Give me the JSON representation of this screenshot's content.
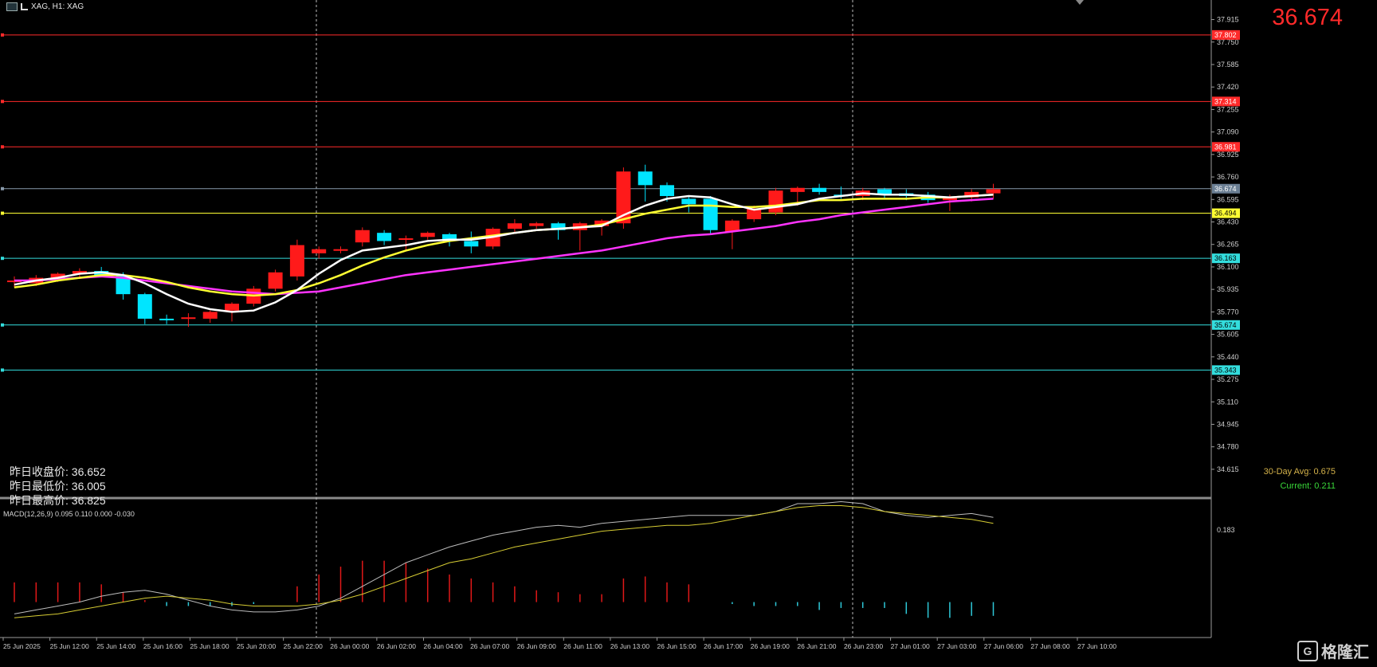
{
  "window": {
    "title": "XAG, H1: XAG"
  },
  "current_price": "36.674",
  "yesterday": {
    "close_label": "昨日收盘价",
    "close": "36.652",
    "low_label": "昨日最低价",
    "low": "36.005",
    "high_label": "昨日最高价",
    "high": "36.825"
  },
  "stats": {
    "avg_label": "30-Day Avg",
    "avg_value": "0.675",
    "current_label": "Current",
    "current_value": "0.211"
  },
  "macd_label": "MACD(12,26,9) 0.095 0.110 0.000 -0.030",
  "watermark": "格隆汇",
  "colors": {
    "bull": "#ff1a1a",
    "bear": "#00e5ff",
    "ma_fast": "#ffffff",
    "ma_mid": "#ffff33",
    "ma_slow": "#ff33ff",
    "resistance": "#ff2a2a",
    "support": "#33dddd",
    "pivot": "#ffff33"
  },
  "chart_data": {
    "type": "candlestick",
    "symbol": "XAG",
    "timeframe": "H1",
    "ylim": [
      34.48,
      38.0
    ],
    "y_ticks": [
      "37.915",
      "37.750",
      "37.585",
      "37.420",
      "37.255",
      "37.090",
      "36.925",
      "36.760",
      "36.595",
      "36.430",
      "36.265",
      "36.100",
      "35.935",
      "35.770",
      "35.605",
      "35.440",
      "35.275",
      "35.110",
      "34.945",
      "34.780",
      "34.615"
    ],
    "x_tick_labels": [
      "25 Jun 2025",
      "25 Jun 12:00",
      "25 Jun 14:00",
      "25 Jun 16:00",
      "25 Jun 18:00",
      "25 Jun 20:00",
      "25 Jun 22:00",
      "26 Jun 00:00",
      "26 Jun 02:00",
      "26 Jun 04:00",
      "26 Jun 07:00",
      "26 Jun 09:00",
      "26 Jun 11:00",
      "26 Jun 13:00",
      "26 Jun 15:00",
      "26 Jun 17:00",
      "26 Jun 19:00",
      "26 Jun 21:00",
      "26 Jun 23:00",
      "27 Jun 01:00",
      "27 Jun 03:00",
      "27 Jun 06:00",
      "27 Jun 08:00",
      "27 Jun 10:00"
    ],
    "candles": [
      {
        "o": 35.99,
        "h": 36.03,
        "l": 35.95,
        "c": 36.0
      },
      {
        "o": 35.98,
        "h": 36.04,
        "l": 35.96,
        "c": 36.02
      },
      {
        "o": 36.02,
        "h": 36.06,
        "l": 35.99,
        "c": 36.05
      },
      {
        "o": 36.05,
        "h": 36.09,
        "l": 36.02,
        "c": 36.07
      },
      {
        "o": 36.07,
        "h": 36.1,
        "l": 36.03,
        "c": 36.04
      },
      {
        "o": 36.04,
        "h": 36.06,
        "l": 35.86,
        "c": 35.9
      },
      {
        "o": 35.9,
        "h": 35.91,
        "l": 35.68,
        "c": 35.72
      },
      {
        "o": 35.72,
        "h": 35.75,
        "l": 35.68,
        "c": 35.71
      },
      {
        "o": 35.72,
        "h": 35.76,
        "l": 35.66,
        "c": 35.73
      },
      {
        "o": 35.72,
        "h": 35.78,
        "l": 35.69,
        "c": 35.77
      },
      {
        "o": 35.78,
        "h": 35.84,
        "l": 35.7,
        "c": 35.83
      },
      {
        "o": 35.83,
        "h": 35.96,
        "l": 35.81,
        "c": 35.94
      },
      {
        "o": 35.94,
        "h": 36.08,
        "l": 35.92,
        "c": 36.06
      },
      {
        "o": 36.03,
        "h": 36.3,
        "l": 36.0,
        "c": 36.26
      },
      {
        "o": 36.2,
        "h": 36.25,
        "l": 36.16,
        "c": 36.23
      },
      {
        "o": 36.22,
        "h": 36.25,
        "l": 36.2,
        "c": 36.23
      },
      {
        "o": 36.28,
        "h": 36.39,
        "l": 36.25,
        "c": 36.37
      },
      {
        "o": 36.35,
        "h": 36.37,
        "l": 36.26,
        "c": 36.29
      },
      {
        "o": 36.3,
        "h": 36.33,
        "l": 36.22,
        "c": 36.31
      },
      {
        "o": 36.32,
        "h": 36.36,
        "l": 36.3,
        "c": 36.35
      },
      {
        "o": 36.34,
        "h": 36.35,
        "l": 36.25,
        "c": 36.3
      },
      {
        "o": 36.29,
        "h": 36.36,
        "l": 36.2,
        "c": 36.25
      },
      {
        "o": 36.25,
        "h": 36.39,
        "l": 36.23,
        "c": 36.38
      },
      {
        "o": 36.38,
        "h": 36.45,
        "l": 36.35,
        "c": 36.42
      },
      {
        "o": 36.4,
        "h": 36.43,
        "l": 36.38,
        "c": 36.42
      },
      {
        "o": 36.42,
        "h": 36.43,
        "l": 36.3,
        "c": 36.37
      },
      {
        "o": 36.37,
        "h": 36.43,
        "l": 36.22,
        "c": 36.42
      },
      {
        "o": 36.4,
        "h": 36.45,
        "l": 36.33,
        "c": 36.44
      },
      {
        "o": 36.42,
        "h": 36.83,
        "l": 36.38,
        "c": 36.8
      },
      {
        "o": 36.8,
        "h": 36.85,
        "l": 36.58,
        "c": 36.7
      },
      {
        "o": 36.7,
        "h": 36.72,
        "l": 36.58,
        "c": 36.62
      },
      {
        "o": 36.6,
        "h": 36.62,
        "l": 36.5,
        "c": 36.56
      },
      {
        "o": 36.6,
        "h": 36.62,
        "l": 36.34,
        "c": 36.37
      },
      {
        "o": 36.36,
        "h": 36.45,
        "l": 36.23,
        "c": 36.44
      },
      {
        "o": 36.45,
        "h": 36.55,
        "l": 36.43,
        "c": 36.53
      },
      {
        "o": 36.5,
        "h": 36.68,
        "l": 36.48,
        "c": 36.66
      },
      {
        "o": 36.65,
        "h": 36.69,
        "l": 36.55,
        "c": 36.68
      },
      {
        "o": 36.68,
        "h": 36.71,
        "l": 36.63,
        "c": 36.65
      },
      {
        "o": 36.63,
        "h": 36.69,
        "l": 36.6,
        "c": 36.62
      },
      {
        "o": 36.62,
        "h": 36.68,
        "l": 36.59,
        "c": 36.66
      },
      {
        "o": 36.67,
        "h": 36.68,
        "l": 36.6,
        "c": 36.63
      },
      {
        "o": 36.64,
        "h": 36.67,
        "l": 36.59,
        "c": 36.62
      },
      {
        "o": 36.63,
        "h": 36.65,
        "l": 36.57,
        "c": 36.59
      },
      {
        "o": 36.59,
        "h": 36.63,
        "l": 36.51,
        "c": 36.61
      },
      {
        "o": 36.61,
        "h": 36.67,
        "l": 36.58,
        "c": 36.65
      },
      {
        "o": 36.64,
        "h": 36.71,
        "l": 36.6,
        "c": 36.67
      }
    ],
    "ma_fast": [
      35.97,
      36.0,
      36.02,
      36.05,
      36.06,
      36.04,
      35.98,
      35.9,
      35.83,
      35.79,
      35.77,
      35.78,
      35.84,
      35.93,
      36.05,
      36.15,
      36.22,
      36.24,
      36.26,
      36.29,
      36.3,
      36.3,
      36.32,
      36.35,
      36.37,
      36.38,
      36.39,
      36.4,
      36.48,
      36.55,
      36.6,
      36.62,
      36.61,
      36.56,
      36.52,
      36.54,
      36.56,
      36.6,
      36.62,
      36.64,
      36.63,
      36.63,
      36.62,
      36.61,
      36.62,
      36.63
    ],
    "ma_mid": [
      35.95,
      35.97,
      36.0,
      36.02,
      36.04,
      36.04,
      36.02,
      35.99,
      35.95,
      35.92,
      35.9,
      35.89,
      35.9,
      35.93,
      35.98,
      36.04,
      36.11,
      36.17,
      36.22,
      36.26,
      36.29,
      36.31,
      36.33,
      36.35,
      36.37,
      36.38,
      36.39,
      36.41,
      36.45,
      36.49,
      36.52,
      36.55,
      36.55,
      36.54,
      36.54,
      36.55,
      36.57,
      36.59,
      36.59,
      36.6,
      36.6,
      36.6,
      36.61,
      36.61,
      36.62,
      36.63
    ],
    "ma_slow": [
      36.0,
      36.0,
      36.01,
      36.02,
      36.03,
      36.02,
      36.0,
      35.98,
      35.96,
      35.94,
      35.92,
      35.91,
      35.9,
      35.91,
      35.92,
      35.95,
      35.98,
      36.01,
      36.04,
      36.06,
      36.08,
      36.1,
      36.12,
      36.14,
      36.16,
      36.18,
      36.2,
      36.22,
      36.25,
      36.28,
      36.31,
      36.33,
      36.34,
      36.36,
      36.38,
      36.4,
      36.43,
      36.45,
      36.48,
      36.5,
      36.52,
      36.54,
      36.56,
      36.58,
      36.59,
      36.6
    ],
    "levels": [
      {
        "price": "37.802",
        "role": "resistance"
      },
      {
        "price": "37.314",
        "role": "resistance"
      },
      {
        "price": "36.981",
        "role": "resistance"
      },
      {
        "price": "36.674",
        "role": "current"
      },
      {
        "price": "36.494",
        "role": "pivot"
      },
      {
        "price": "36.163",
        "role": "support"
      },
      {
        "price": "35.674",
        "role": "support"
      },
      {
        "price": "35.343",
        "role": "support"
      }
    ],
    "macd_ylim": [
      -0.09,
      0.25
    ],
    "macd_top_tick": "0.183",
    "macd_hist": [
      0.05,
      0.05,
      0.05,
      0.05,
      0.045,
      0.025,
      0.005,
      -0.01,
      -0.01,
      -0.01,
      -0.01,
      -0.005,
      0.0,
      0.04,
      0.07,
      0.09,
      0.105,
      0.105,
      0.1,
      0.085,
      0.07,
      0.06,
      0.05,
      0.04,
      0.03,
      0.025,
      0.02,
      0.02,
      0.06,
      0.065,
      0.05,
      0.045,
      0.0,
      -0.005,
      -0.01,
      -0.01,
      -0.01,
      -0.02,
      -0.015,
      -0.015,
      -0.015,
      -0.03,
      -0.04,
      -0.04,
      -0.035,
      -0.035
    ],
    "macd_line": [
      -0.03,
      -0.02,
      -0.01,
      0.0,
      0.015,
      0.025,
      0.03,
      0.02,
      0.005,
      -0.01,
      -0.02,
      -0.025,
      -0.025,
      -0.02,
      -0.01,
      0.01,
      0.04,
      0.07,
      0.1,
      0.12,
      0.14,
      0.155,
      0.17,
      0.18,
      0.19,
      0.195,
      0.19,
      0.2,
      0.205,
      0.21,
      0.215,
      0.22,
      0.22,
      0.22,
      0.22,
      0.23,
      0.25,
      0.25,
      0.255,
      0.25,
      0.23,
      0.22,
      0.215,
      0.22,
      0.225,
      0.215
    ],
    "macd_signal": [
      -0.04,
      -0.035,
      -0.03,
      -0.02,
      -0.01,
      0.0,
      0.01,
      0.015,
      0.01,
      0.005,
      -0.005,
      -0.01,
      -0.01,
      -0.01,
      -0.005,
      0.005,
      0.02,
      0.04,
      0.06,
      0.08,
      0.1,
      0.11,
      0.125,
      0.14,
      0.15,
      0.16,
      0.17,
      0.18,
      0.185,
      0.19,
      0.195,
      0.195,
      0.2,
      0.21,
      0.22,
      0.23,
      0.24,
      0.245,
      0.245,
      0.24,
      0.23,
      0.225,
      0.22,
      0.215,
      0.21,
      0.2
    ]
  }
}
